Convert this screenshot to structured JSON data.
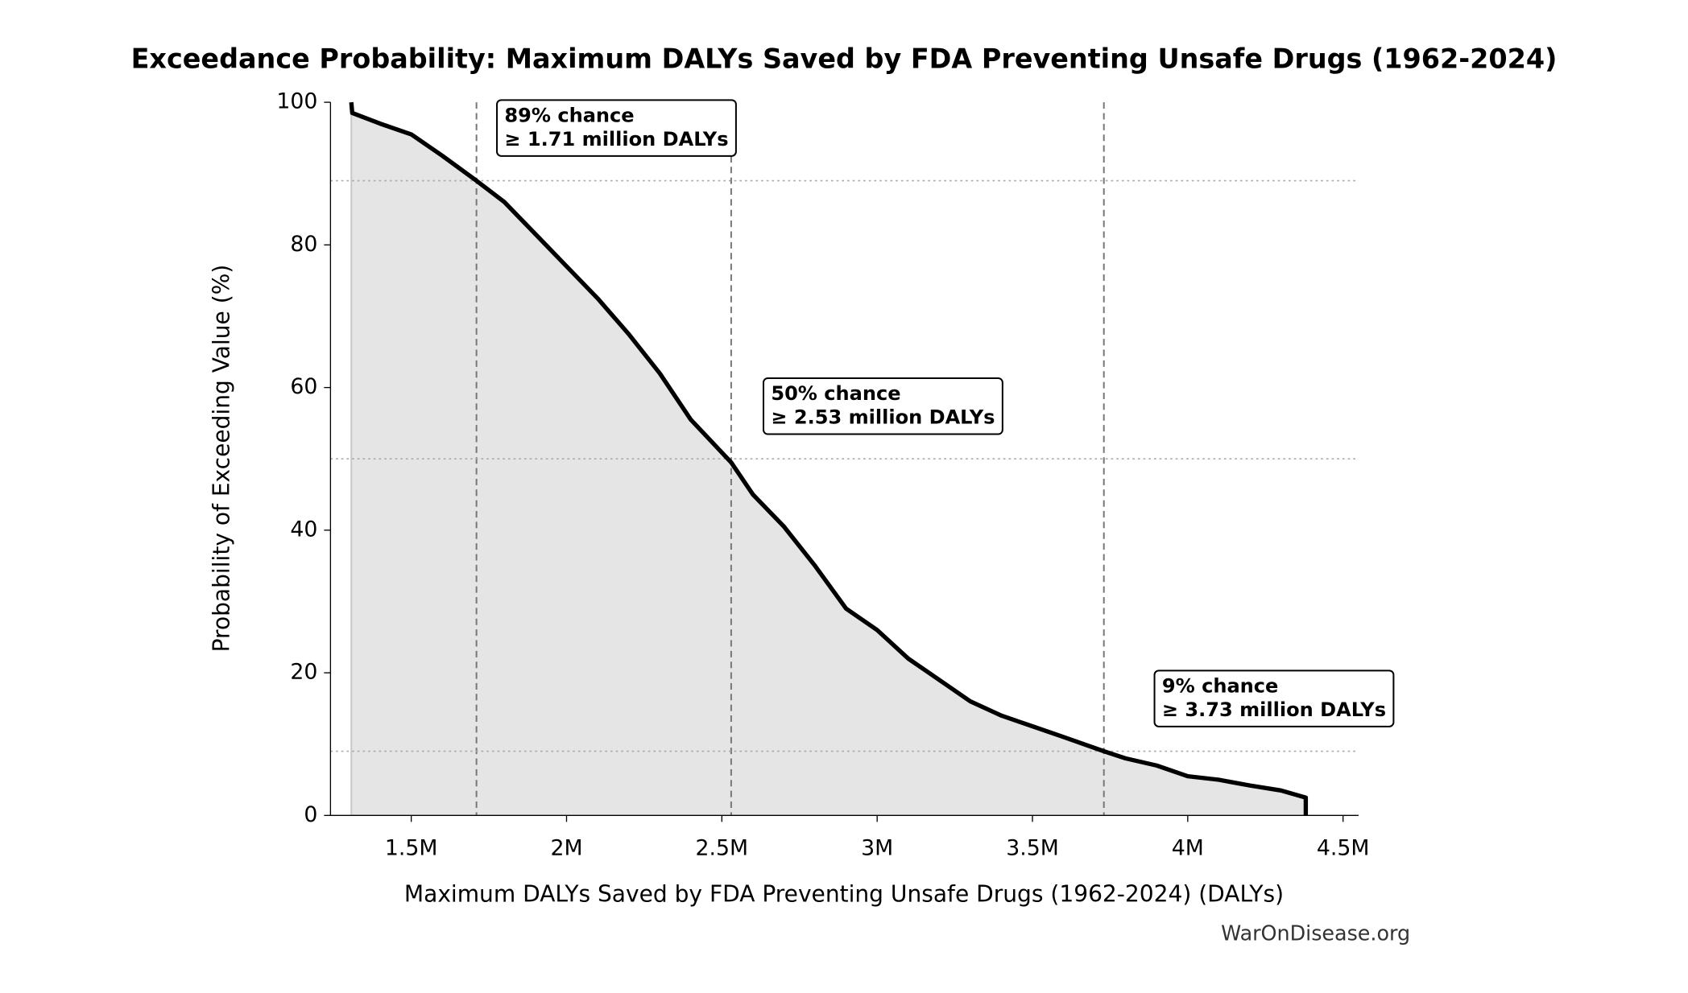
{
  "chart_data": {
    "type": "line",
    "title": "Exceedance Probability: Maximum DALYs Saved by FDA Preventing Unsafe Drugs (1962-2024)",
    "xlabel": "Maximum DALYs Saved by FDA Preventing Unsafe Drugs (1962-2024) (DALYs)",
    "ylabel": "Probability of Exceeding Value (%)",
    "source": "WarOnDisease.org",
    "color": "#000000",
    "fill_color": "#e5e5e5",
    "x": [
      1307000,
      1310000,
      1400000,
      1500000,
      1600000,
      1710000,
      1800000,
      1900000,
      2000000,
      2100000,
      2200000,
      2300000,
      2400000,
      2530000,
      2600000,
      2700000,
      2800000,
      2900000,
      3000000,
      3100000,
      3200000,
      3300000,
      3400000,
      3500000,
      3600000,
      3730000,
      3800000,
      3900000,
      4000000,
      4100000,
      4200000,
      4300000,
      4380000,
      4380000
    ],
    "values": [
      100,
      98.5,
      97,
      95.5,
      92.5,
      89,
      86,
      81.5,
      77,
      72.5,
      67.5,
      62,
      55.5,
      49.5,
      45,
      40.5,
      35,
      29,
      26,
      22,
      19,
      16,
      14,
      12.5,
      11,
      9,
      8,
      7,
      5.5,
      5,
      4.2,
      3.5,
      2.5,
      0
    ],
    "xlim": [
      1240000,
      4550000
    ],
    "ylim": [
      0,
      100
    ],
    "xticks": [
      {
        "value": 1500000,
        "label": "1.5M"
      },
      {
        "value": 2000000,
        "label": "2M"
      },
      {
        "value": 2500000,
        "label": "2.5M"
      },
      {
        "value": 3000000,
        "label": "3M"
      },
      {
        "value": 3500000,
        "label": "3.5M"
      },
      {
        "value": 4000000,
        "label": "4M"
      },
      {
        "value": 4500000,
        "label": "4.5M"
      }
    ],
    "yticks": [
      0,
      20,
      40,
      60,
      80,
      100
    ],
    "annotations": [
      {
        "x": 1710000,
        "y": 89,
        "lines": [
          "89% chance",
          "≥ 1.71 million DALYs"
        ]
      },
      {
        "x": 2530000,
        "y": 50,
        "lines": [
          "50% chance",
          "≥ 2.53 million DALYs"
        ]
      },
      {
        "x": 3730000,
        "y": 9,
        "lines": [
          "9% chance",
          "≥ 3.73 million DALYs"
        ]
      }
    ]
  }
}
